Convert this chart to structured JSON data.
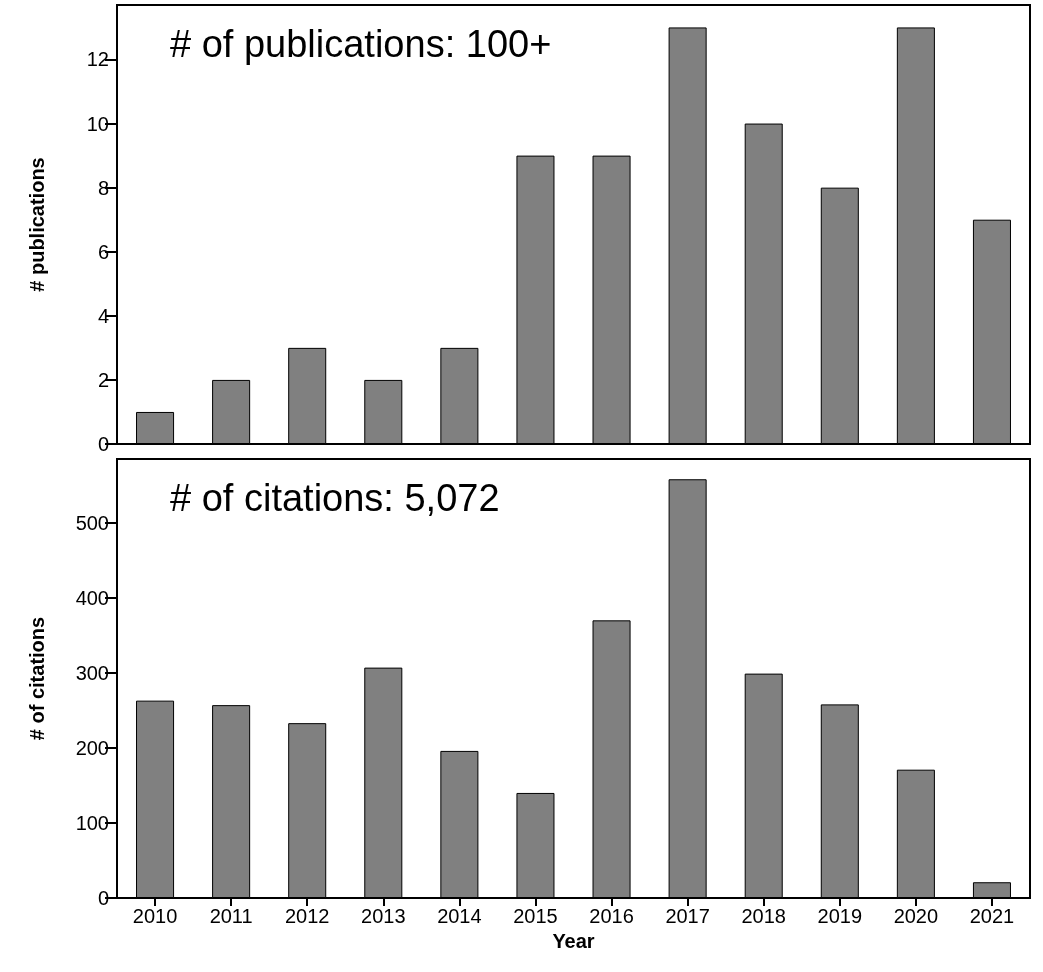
{
  "chart_data": [
    {
      "type": "bar",
      "categories": [
        "2010",
        "2011",
        "2012",
        "2013",
        "2014",
        "2015",
        "2016",
        "2017",
        "2018",
        "2019",
        "2020",
        "2021"
      ],
      "values": [
        1,
        2,
        3,
        2,
        3,
        9,
        9,
        13,
        10,
        8,
        13,
        7
      ],
      "color": "#808080",
      "ylabel": "# publications",
      "ylim": [
        0,
        13.7
      ],
      "yticks": [
        0,
        2,
        4,
        6,
        8,
        10,
        12
      ],
      "grid": false,
      "tick_labels": "y",
      "annotations": [
        "# of publications: 100+"
      ]
    },
    {
      "type": "bar",
      "categories": [
        "2010",
        "2011",
        "2012",
        "2013",
        "2014",
        "2015",
        "2016",
        "2017",
        "2018",
        "2019",
        "2020",
        "2021"
      ],
      "values": [
        263,
        257,
        233,
        307,
        196,
        140,
        370,
        558,
        299,
        258,
        171,
        21
      ],
      "color": "#808080",
      "xlabel": "Year",
      "ylabel": "# of citations",
      "ylim": [
        0,
        585
      ],
      "yticks": [
        0,
        100,
        200,
        300,
        400,
        500
      ],
      "grid": false,
      "annotations": [
        "# of citations: 5,072"
      ]
    }
  ]
}
